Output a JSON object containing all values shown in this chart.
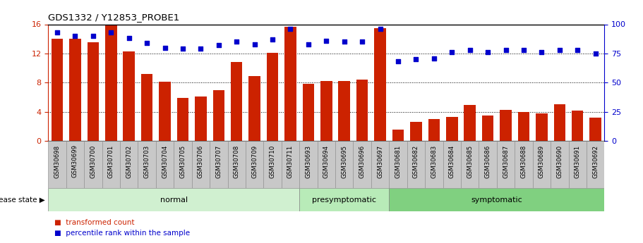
{
  "title": "GDS1332 / Y12853_PROBE1",
  "samples": [
    "GSM30698",
    "GSM30699",
    "GSM30700",
    "GSM30701",
    "GSM30702",
    "GSM30703",
    "GSM30704",
    "GSM30705",
    "GSM30706",
    "GSM30707",
    "GSM30708",
    "GSM30709",
    "GSM30710",
    "GSM30711",
    "GSM30693",
    "GSM30694",
    "GSM30695",
    "GSM30696",
    "GSM30697",
    "GSM30681",
    "GSM30682",
    "GSM30683",
    "GSM30684",
    "GSM30685",
    "GSM30686",
    "GSM30687",
    "GSM30688",
    "GSM30689",
    "GSM30690",
    "GSM30691",
    "GSM30692"
  ],
  "bar_values": [
    14.0,
    14.0,
    13.5,
    16.0,
    12.3,
    9.2,
    8.1,
    5.9,
    6.1,
    7.0,
    10.8,
    8.9,
    12.1,
    15.7,
    7.8,
    8.2,
    8.2,
    8.4,
    15.5,
    1.6,
    2.6,
    3.0,
    3.3,
    4.9,
    3.5,
    4.3,
    4.0,
    3.8,
    5.0,
    4.2,
    3.2
  ],
  "dot_values_pct": [
    93,
    90,
    90,
    93,
    88,
    84,
    80,
    79,
    79,
    82,
    85,
    83,
    87,
    96,
    83,
    86,
    85,
    85,
    96,
    68,
    70,
    71,
    76,
    78,
    76,
    78,
    78,
    76,
    78,
    78,
    75
  ],
  "groups": [
    {
      "label": "normal",
      "start": 0,
      "end": 13,
      "color": "#d0f0d0"
    },
    {
      "label": "presymptomatic",
      "start": 14,
      "end": 18,
      "color": "#b8ebb8"
    },
    {
      "label": "symptomatic",
      "start": 19,
      "end": 30,
      "color": "#80d080"
    }
  ],
  "bar_color": "#cc2200",
  "dot_color": "#0000cc",
  "ylim_left": [
    0,
    16
  ],
  "ylim_right": [
    0,
    100
  ],
  "yticks_left": [
    0,
    4,
    8,
    12,
    16
  ],
  "yticks_right": [
    0,
    25,
    50,
    75,
    100
  ],
  "left_tick_color": "#cc2200",
  "right_tick_color": "#0000cc",
  "background_color": "#ffffff",
  "xtick_bg_color": "#c8c8c8",
  "legend_items": [
    {
      "label": "transformed count",
      "color": "#cc2200"
    },
    {
      "label": "percentile rank within the sample",
      "color": "#0000cc"
    }
  ],
  "disease_state_label": "disease state"
}
